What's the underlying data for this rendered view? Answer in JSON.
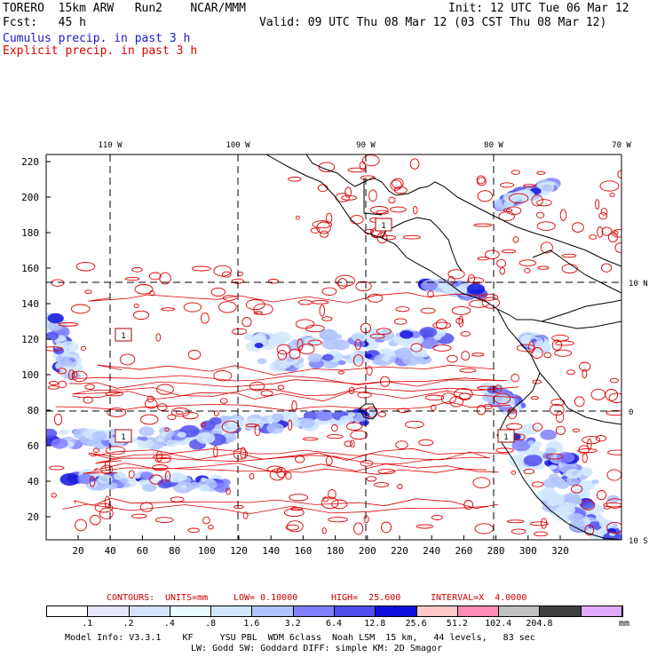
{
  "header": {
    "line1_left": "TORERO  15km ARW   Run2    NCAR/MMM",
    "line1_right": "Init: 12 UTC Tue 06 Mar 12",
    "line2_left": "Fcst:   45 h",
    "line2_right": "Valid: 09 UTC Thu 08 Mar 12 (03 CST Thu 08 Mar 12)",
    "legend_cumulus": "Cumulus precip. in past 3 h",
    "legend_explicit": "Explicit precip. in past 3 h"
  },
  "colors": {
    "cumulus": "#1a1acc",
    "explicit": "#dd0000",
    "coast": "#000000"
  },
  "map": {
    "lon_labels": [
      "110 W",
      "100 W",
      "90 W",
      "80 W",
      "70 W"
    ],
    "lat_labels": [
      "10 N",
      "0",
      "10 S"
    ],
    "y_ticks": [
      "220",
      "200",
      "180",
      "160",
      "140",
      "120",
      "100",
      "80",
      "60",
      "40",
      "20"
    ],
    "x_ticks": [
      "20",
      "40",
      "60",
      "80",
      "100",
      "120",
      "140",
      "160",
      "180",
      "200",
      "220",
      "240",
      "260",
      "280",
      "300",
      "320"
    ],
    "box_labels": [
      "1",
      "1",
      "1",
      "1"
    ]
  },
  "contours_line": {
    "prefix": "CONTOURS:",
    "units": "UNITS=mm",
    "low": "LOW= 0.10000",
    "high": "HIGH=  25.600",
    "interval": "INTERVAL=X  4.0000"
  },
  "colorbar": {
    "colors": [
      "#ffffff",
      "#e6e6ff",
      "#d4e4ff",
      "#e8fbff",
      "#d0e8ff",
      "#b0c4ff",
      "#8080ff",
      "#5050ee",
      "#1010dd",
      "#ffc8c8",
      "#ff8cb4",
      "#c0c0c0",
      "#404040",
      "#e0a8ff"
    ],
    "labels": [
      ".1",
      ".2",
      ".4",
      ".8",
      "1.6",
      "3.2",
      "6.4",
      "12.8",
      "25.6",
      "51.2",
      "102.4",
      "204.8"
    ],
    "units": "mm"
  },
  "footer": {
    "line1": "Model Info: V3.3.1    KF     YSU PBL  WDM 6class  Noah LSM  15 km,   44 levels,   83 sec",
    "line2": "LW: Godd SW: Goddard DIFF: simple KM: 2D Smagor"
  }
}
